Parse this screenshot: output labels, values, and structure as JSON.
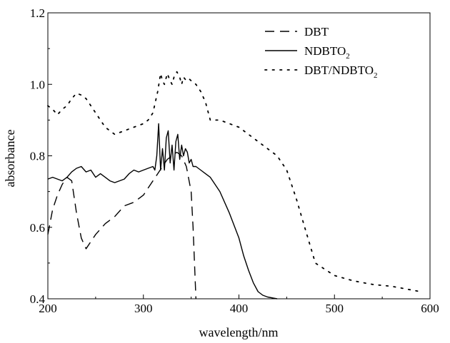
{
  "chart_data": {
    "type": "line",
    "title": "",
    "xlabel": "wavelength/nm",
    "ylabel": "absorbance",
    "xlim": [
      200,
      600
    ],
    "ylim": [
      0.4,
      1.2
    ],
    "xticks": [
      "200",
      "300",
      "400",
      "500",
      "600"
    ],
    "yticks": [
      "0.4",
      "0.6",
      "0.8",
      "1.0",
      "1.2"
    ],
    "grid": false,
    "legend_position": "top-right",
    "series": [
      {
        "name": "DBT",
        "legend_main": "DBT",
        "legend_sub": "",
        "style": "dashed",
        "x": [
          200,
          205,
          210,
          215,
          220,
          225,
          230,
          235,
          240,
          250,
          260,
          270,
          280,
          290,
          300,
          310,
          315,
          320,
          325,
          330,
          335,
          340,
          345,
          350,
          352,
          355
        ],
        "y": [
          0.58,
          0.65,
          0.69,
          0.72,
          0.74,
          0.73,
          0.64,
          0.57,
          0.54,
          0.58,
          0.61,
          0.63,
          0.66,
          0.67,
          0.69,
          0.73,
          0.75,
          0.77,
          0.79,
          0.8,
          0.81,
          0.8,
          0.77,
          0.7,
          0.6,
          0.4
        ]
      },
      {
        "name": "NDBTO2",
        "legend_main": "NDBTO",
        "legend_sub": "2",
        "style": "solid",
        "x": [
          200,
          205,
          210,
          215,
          220,
          225,
          230,
          235,
          240,
          245,
          250,
          255,
          260,
          265,
          270,
          275,
          280,
          285,
          290,
          295,
          300,
          305,
          310,
          312,
          314,
          316,
          318,
          320,
          322,
          324,
          326,
          328,
          330,
          332,
          334,
          336,
          338,
          340,
          342,
          344,
          346,
          348,
          350,
          352,
          355,
          360,
          365,
          370,
          380,
          390,
          400,
          405,
          410,
          415,
          420,
          425,
          430,
          440
        ],
        "y": [
          0.735,
          0.74,
          0.735,
          0.73,
          0.74,
          0.755,
          0.765,
          0.77,
          0.755,
          0.76,
          0.74,
          0.75,
          0.74,
          0.73,
          0.725,
          0.73,
          0.735,
          0.75,
          0.76,
          0.755,
          0.76,
          0.765,
          0.77,
          0.76,
          0.8,
          0.89,
          0.76,
          0.82,
          0.76,
          0.85,
          0.87,
          0.78,
          0.83,
          0.76,
          0.84,
          0.86,
          0.79,
          0.83,
          0.8,
          0.82,
          0.81,
          0.78,
          0.79,
          0.77,
          0.77,
          0.76,
          0.75,
          0.74,
          0.7,
          0.64,
          0.57,
          0.52,
          0.48,
          0.445,
          0.42,
          0.41,
          0.405,
          0.4
        ]
      },
      {
        "name": "DBT/NDBTO2",
        "legend_main": "DBT/NDBTO",
        "legend_sub": "2",
        "style": "dotted",
        "x": [
          200,
          205,
          210,
          215,
          220,
          225,
          230,
          235,
          240,
          250,
          260,
          270,
          280,
          290,
          300,
          305,
          310,
          315,
          318,
          320,
          322,
          325,
          328,
          330,
          332,
          335,
          338,
          340,
          342,
          345,
          348,
          350,
          355,
          360,
          365,
          370,
          380,
          390,
          400,
          410,
          420,
          430,
          440,
          450,
          460,
          470,
          480,
          500,
          520,
          540,
          560,
          580,
          590
        ],
        "y": [
          0.94,
          0.93,
          0.915,
          0.93,
          0.94,
          0.96,
          0.975,
          0.97,
          0.96,
          0.92,
          0.88,
          0.86,
          0.87,
          0.88,
          0.89,
          0.9,
          0.92,
          0.98,
          1.03,
          1.01,
          1.0,
          1.03,
          1.01,
          1.0,
          1.02,
          1.035,
          1.02,
          1.0,
          1.02,
          1.01,
          1.015,
          1.01,
          1.0,
          0.98,
          0.95,
          0.9,
          0.9,
          0.89,
          0.88,
          0.86,
          0.84,
          0.82,
          0.8,
          0.76,
          0.68,
          0.59,
          0.5,
          0.465,
          0.45,
          0.44,
          0.435,
          0.425,
          0.42
        ]
      }
    ]
  }
}
